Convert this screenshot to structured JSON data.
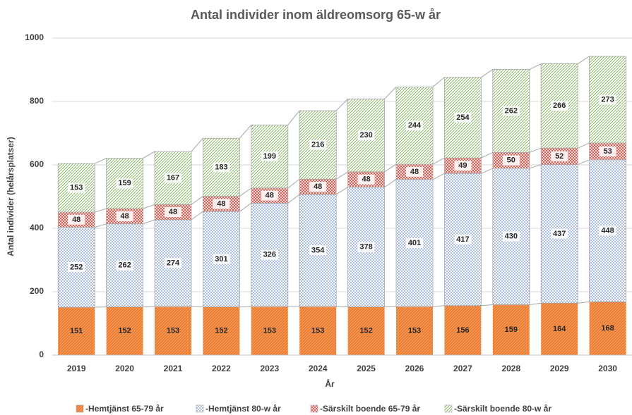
{
  "chart_data": {
    "type": "stacked_bar",
    "title": "Antal individer inom äldreomsorg 65-w år",
    "x_label": "År",
    "y_label": "Antal individer (helårsplatser)",
    "categories": [
      "2019",
      "2020",
      "2021",
      "2022",
      "2023",
      "2024",
      "2025",
      "2026",
      "2027",
      "2028",
      "2029",
      "2030"
    ],
    "series": [
      {
        "name": "-Hemtjänst 65-79 år",
        "color": "#ed7d31",
        "values": [
          151,
          152,
          153,
          152,
          153,
          153,
          152,
          153,
          156,
          159,
          164,
          168
        ]
      },
      {
        "name": "-Hemtjänst 80-w år",
        "color": "#4472c4",
        "values": [
          252,
          262,
          274,
          301,
          326,
          354,
          378,
          401,
          417,
          430,
          437,
          448
        ]
      },
      {
        "name": "-Särskilt boende 65-79 år",
        "color": "#e03c31",
        "values": [
          48,
          48,
          48,
          48,
          48,
          48,
          48,
          48,
          49,
          50,
          52,
          53
        ]
      },
      {
        "name": "-Särskilt boende 80-w år",
        "color": "#70ad47",
        "values": [
          153,
          159,
          167,
          183,
          199,
          216,
          230,
          244,
          254,
          262,
          266,
          273
        ]
      }
    ],
    "ylim": [
      0,
      1000
    ],
    "yticks": [
      0,
      200,
      400,
      600,
      800,
      1000
    ],
    "grid": true,
    "legend": "bottom"
  }
}
